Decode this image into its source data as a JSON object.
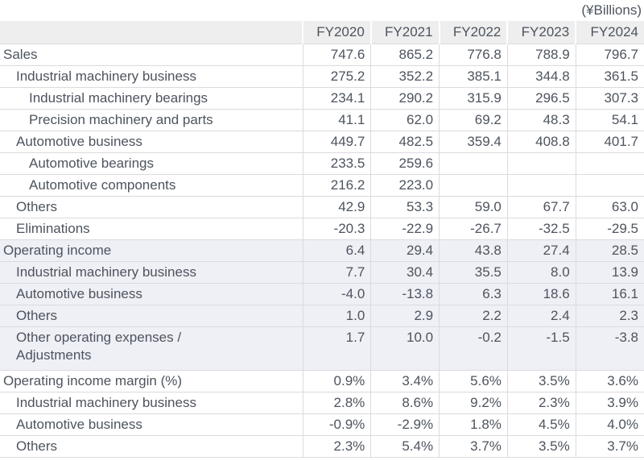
{
  "units_label": "(¥Billions)",
  "colors": {
    "text": "#4d545e",
    "grid": "#dadbe0",
    "header_bg": "#eeeeee",
    "highlight_bg": "#efeff6"
  },
  "table": {
    "columns": [
      "FY2020",
      "FY2021",
      "FY2022",
      "FY2023",
      "FY2024"
    ],
    "rows": [
      {
        "label": "Sales",
        "indent": 0,
        "section": "sales",
        "highlight": false,
        "tall": false,
        "values": [
          "747.6",
          "865.2",
          "776.8",
          "788.9",
          "796.7"
        ]
      },
      {
        "label": "Industrial machinery business",
        "indent": 1,
        "section": "sales",
        "highlight": false,
        "tall": false,
        "values": [
          "275.2",
          "352.2",
          "385.1",
          "344.8",
          "361.5"
        ]
      },
      {
        "label": "Industrial machinery bearings",
        "indent": 2,
        "section": "sales",
        "highlight": false,
        "tall": false,
        "values": [
          "234.1",
          "290.2",
          "315.9",
          "296.5",
          "307.3"
        ]
      },
      {
        "label": "Precision machinery and parts",
        "indent": 2,
        "section": "sales",
        "highlight": false,
        "tall": false,
        "values": [
          "41.1",
          "62.0",
          "69.2",
          "48.3",
          "54.1"
        ]
      },
      {
        "label": "Automotive business",
        "indent": 1,
        "section": "sales",
        "highlight": false,
        "tall": false,
        "values": [
          "449.7",
          "482.5",
          "359.4",
          "408.8",
          "401.7"
        ]
      },
      {
        "label": "Automotive bearings",
        "indent": 2,
        "section": "sales",
        "highlight": false,
        "tall": false,
        "values": [
          "233.5",
          "259.6",
          "",
          "",
          ""
        ]
      },
      {
        "label": "Automotive components",
        "indent": 2,
        "section": "sales",
        "highlight": false,
        "tall": false,
        "values": [
          "216.2",
          "223.0",
          "",
          "",
          ""
        ]
      },
      {
        "label": "Others",
        "indent": 1,
        "section": "sales",
        "highlight": false,
        "tall": false,
        "values": [
          "42.9",
          "53.3",
          "59.0",
          "67.7",
          "63.0"
        ]
      },
      {
        "label": "Eliminations",
        "indent": 1,
        "section": "sales",
        "highlight": false,
        "tall": false,
        "values": [
          "-20.3",
          "-22.9",
          "-26.7",
          "-32.5",
          "-29.5"
        ]
      },
      {
        "label": "Operating income",
        "indent": 0,
        "section": "operating-income",
        "highlight": true,
        "tall": false,
        "values": [
          "6.4",
          "29.4",
          "43.8",
          "27.4",
          "28.5"
        ]
      },
      {
        "label": "Industrial machinery business",
        "indent": 1,
        "section": "operating-income",
        "highlight": true,
        "tall": false,
        "values": [
          "7.7",
          "30.4",
          "35.5",
          "8.0",
          "13.9"
        ]
      },
      {
        "label": "Automotive business",
        "indent": 1,
        "section": "operating-income",
        "highlight": true,
        "tall": false,
        "values": [
          "-4.0",
          "-13.8",
          "6.3",
          "18.6",
          "16.1"
        ]
      },
      {
        "label": "Others",
        "indent": 1,
        "section": "operating-income",
        "highlight": true,
        "tall": false,
        "values": [
          "1.0",
          "2.9",
          "2.2",
          "2.4",
          "2.3"
        ]
      },
      {
        "label": "Other operating expenses /\nAdjustments",
        "indent": 1,
        "section": "operating-income",
        "highlight": true,
        "tall": true,
        "values": [
          "1.7",
          "10.0",
          "-0.2",
          "-1.5",
          "-3.8"
        ]
      },
      {
        "label": "Operating income margin (%)",
        "indent": 0,
        "section": "operating-income-margin",
        "highlight": false,
        "tall": false,
        "values": [
          "0.9%",
          "3.4%",
          "5.6%",
          "3.5%",
          "3.6%"
        ]
      },
      {
        "label": "Industrial machinery business",
        "indent": 1,
        "section": "operating-income-margin",
        "highlight": false,
        "tall": false,
        "values": [
          "2.8%",
          "8.6%",
          "9.2%",
          "2.3%",
          "3.9%"
        ]
      },
      {
        "label": "Automotive business",
        "indent": 1,
        "section": "operating-income-margin",
        "highlight": false,
        "tall": false,
        "values": [
          "-0.9%",
          "-2.9%",
          "1.8%",
          "4.5%",
          "4.0%"
        ]
      },
      {
        "label": "Others",
        "indent": 1,
        "section": "operating-income-margin",
        "highlight": false,
        "tall": false,
        "values": [
          "2.3%",
          "5.4%",
          "3.7%",
          "3.5%",
          "3.7%"
        ]
      }
    ]
  }
}
